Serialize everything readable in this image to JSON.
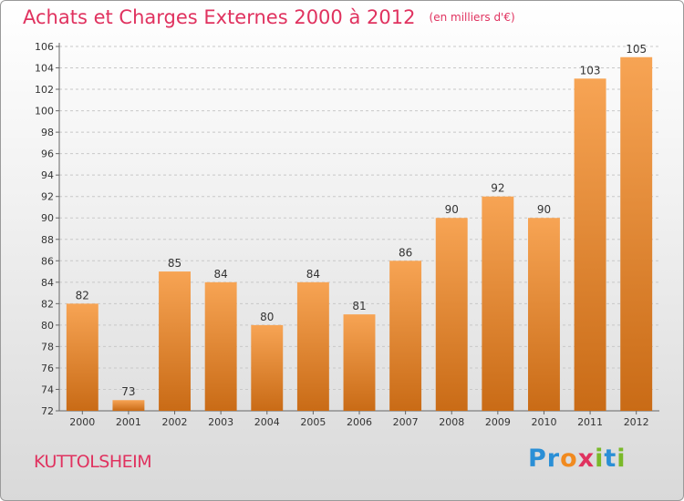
{
  "header": {
    "title": "Achats et Charges Externes 2000 à 2012",
    "subtitle": "(en milliers d'€)"
  },
  "footer": {
    "place": "KUTTOLSHEIM",
    "logo_text": "Proxiti",
    "logo_letters": [
      {
        "ch": "P",
        "color": "#2a8fd6"
      },
      {
        "ch": "r",
        "color": "#2a8fd6"
      },
      {
        "ch": "o",
        "color": "#f18a1f"
      },
      {
        "ch": "x",
        "color": "#e0325f"
      },
      {
        "ch": "i",
        "color": "#7ab929"
      },
      {
        "ch": "t",
        "color": "#2a8fd6"
      },
      {
        "ch": "i",
        "color": "#7ab929"
      }
    ]
  },
  "colors": {
    "title": "#e0325f",
    "bar_light": "#f7a454",
    "bar_dark": "#c96b16",
    "grid": "#c8c8c8",
    "axis_text": "#333333"
  },
  "chart_data": {
    "type": "bar",
    "title": "Achats et Charges Externes 2000 à 2012",
    "subtitle": "(en milliers d'€)",
    "xlabel": "",
    "ylabel": "",
    "ylim": [
      72,
      106
    ],
    "yticks": [
      72,
      74,
      76,
      78,
      80,
      82,
      84,
      86,
      88,
      90,
      92,
      94,
      96,
      98,
      100,
      102,
      104,
      106
    ],
    "grid": "horizontal dashed",
    "categories": [
      "2000",
      "2001",
      "2002",
      "2003",
      "2004",
      "2005",
      "2006",
      "2007",
      "2008",
      "2009",
      "2010",
      "2011",
      "2012"
    ],
    "values": [
      82,
      73,
      85,
      84,
      80,
      84,
      81,
      86,
      90,
      92,
      90,
      103,
      105
    ],
    "data_labels": [
      "82",
      "73",
      "85",
      "84",
      "80",
      "84",
      "81",
      "86",
      "90",
      "92",
      "90",
      "103",
      "105"
    ]
  }
}
